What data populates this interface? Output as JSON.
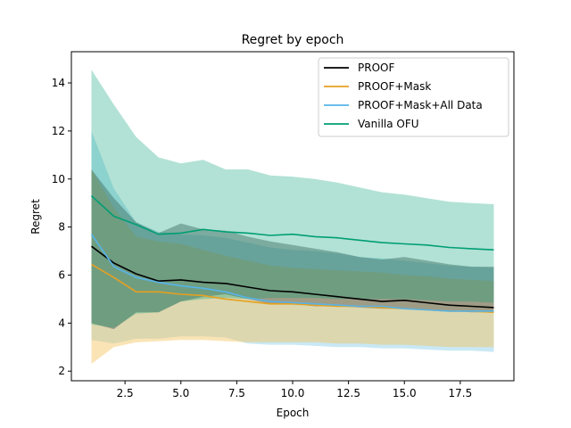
{
  "chart_data": {
    "type": "line",
    "title": "Regret by epoch",
    "xlabel": "Epoch",
    "ylabel": "Regret",
    "xlim": [
      0.1,
      19.9
    ],
    "ylim": [
      1.6,
      15.3
    ],
    "xticks": [
      2.5,
      5.0,
      7.5,
      10.0,
      12.5,
      15.0,
      17.5
    ],
    "xtick_labels": [
      "2.5",
      "5.0",
      "7.5",
      "10.0",
      "12.5",
      "15.0",
      "17.5"
    ],
    "yticks": [
      2,
      4,
      6,
      8,
      10,
      12,
      14
    ],
    "ytick_labels": [
      "2",
      "4",
      "6",
      "8",
      "10",
      "12",
      "14"
    ],
    "grid": false,
    "legend_position": "top-right",
    "x": [
      1,
      2,
      3,
      4,
      5,
      6,
      7,
      8,
      9,
      10,
      11,
      12,
      13,
      14,
      15,
      16,
      17,
      18,
      19
    ],
    "series": [
      {
        "name": "PROOF",
        "color": "#000000",
        "fill": "#555555",
        "values": [
          7.2,
          6.5,
          6.05,
          5.75,
          5.8,
          5.7,
          5.65,
          5.5,
          5.35,
          5.3,
          5.2,
          5.1,
          5.0,
          4.9,
          4.95,
          4.85,
          4.75,
          4.7,
          4.65
        ],
        "lower": [
          4.0,
          3.75,
          4.45,
          4.45,
          4.9,
          5.1,
          5.2,
          5.0,
          4.8,
          4.8,
          4.7,
          4.7,
          4.65,
          4.6,
          4.6,
          4.55,
          4.5,
          4.45,
          4.45
        ],
        "upper": [
          10.4,
          9.2,
          8.2,
          7.75,
          8.15,
          7.9,
          7.85,
          7.6,
          7.4,
          7.25,
          7.1,
          6.95,
          6.75,
          6.65,
          6.75,
          6.6,
          6.45,
          6.35,
          6.35
        ]
      },
      {
        "name": "PROOF+Mask",
        "color": "#e6a020",
        "fill": "#f5c35a",
        "values": [
          6.45,
          5.9,
          5.3,
          5.3,
          5.2,
          5.15,
          5.0,
          4.9,
          4.8,
          4.8,
          4.75,
          4.7,
          4.7,
          4.65,
          4.6,
          4.55,
          4.5,
          4.5,
          4.45
        ],
        "lower": [
          2.3,
          3.0,
          3.2,
          3.25,
          3.3,
          3.3,
          3.25,
          3.2,
          3.2,
          3.2,
          3.2,
          3.15,
          3.15,
          3.1,
          3.1,
          3.05,
          3.0,
          3.0,
          3.0
        ],
        "upper": [
          10.4,
          8.8,
          7.6,
          7.4,
          7.3,
          7.05,
          6.8,
          6.6,
          6.4,
          6.3,
          6.25,
          6.2,
          6.15,
          6.1,
          6.0,
          5.95,
          5.85,
          5.8,
          5.75
        ]
      },
      {
        "name": "PROOF+Mask+All Data",
        "color": "#56b4e9",
        "fill": "#87cbe9",
        "values": [
          7.7,
          6.35,
          5.9,
          5.7,
          5.55,
          5.45,
          5.3,
          5.05,
          4.9,
          4.85,
          4.8,
          4.75,
          4.7,
          4.7,
          4.6,
          4.55,
          4.5,
          4.5,
          4.5
        ],
        "lower": [
          3.3,
          3.15,
          3.35,
          3.35,
          3.45,
          3.45,
          3.4,
          3.15,
          3.1,
          3.1,
          3.05,
          3.0,
          3.0,
          2.95,
          2.95,
          2.9,
          2.85,
          2.85,
          2.8
        ],
        "upper": [
          12.0,
          9.6,
          8.2,
          7.8,
          7.7,
          7.65,
          7.55,
          7.35,
          7.15,
          7.05,
          7.0,
          6.9,
          6.75,
          6.7,
          6.6,
          6.5,
          6.4,
          6.35,
          6.3
        ]
      },
      {
        "name": "Vanilla OFU",
        "color": "#009e73",
        "fill": "#009e73",
        "values": [
          9.3,
          8.45,
          8.1,
          7.7,
          7.75,
          7.9,
          7.8,
          7.75,
          7.65,
          7.7,
          7.6,
          7.55,
          7.45,
          7.35,
          7.3,
          7.25,
          7.15,
          7.1,
          7.05
        ],
        "lower": [
          3.95,
          3.8,
          4.4,
          4.45,
          4.9,
          5.0,
          5.05,
          5.0,
          5.05,
          5.05,
          5.05,
          5.0,
          5.0,
          5.0,
          5.0,
          4.95,
          4.9,
          4.9,
          4.85
        ],
        "upper": [
          14.55,
          13.1,
          11.75,
          10.9,
          10.65,
          10.8,
          10.4,
          10.4,
          10.15,
          10.1,
          10.0,
          9.85,
          9.65,
          9.45,
          9.35,
          9.2,
          9.05,
          9.0,
          8.95
        ]
      }
    ]
  }
}
